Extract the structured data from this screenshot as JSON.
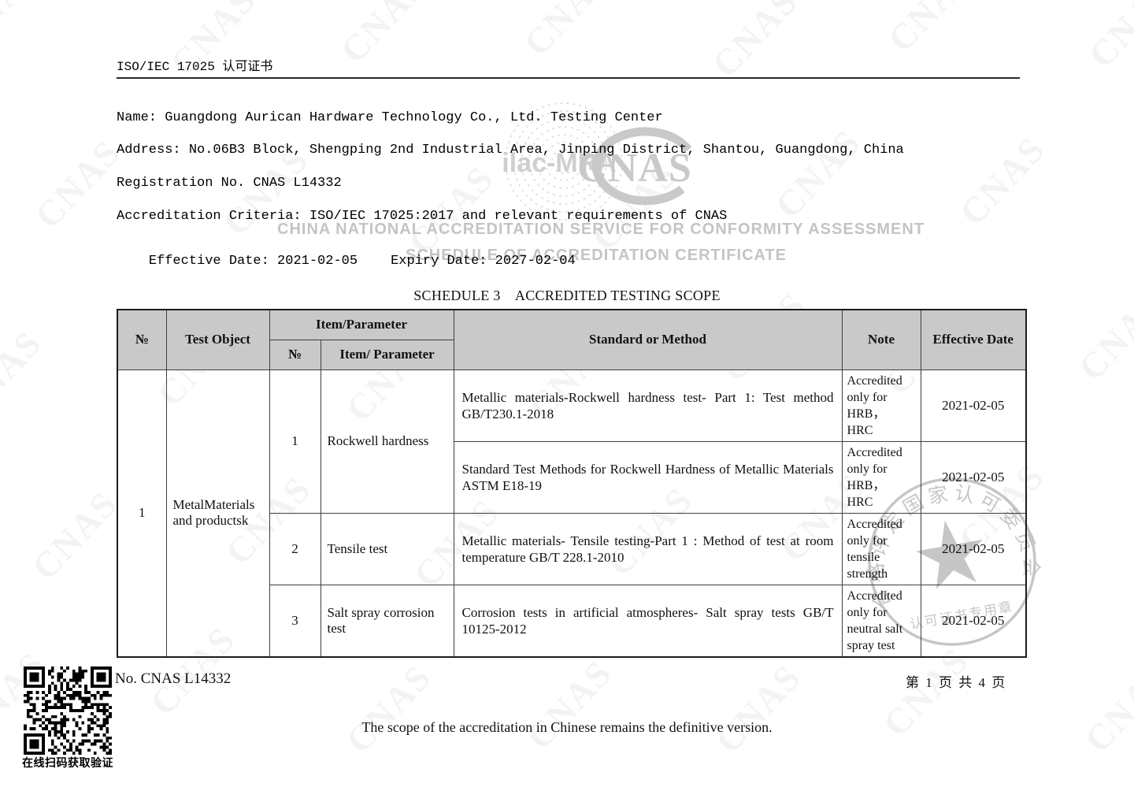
{
  "page_title": "ISO/IEC 17025 认可证书",
  "certificate": {
    "name": "Name: Guangdong Aurican Hardware Technology Co., Ltd. Testing Center",
    "address": "Address: No.06B3 Block, Shengping 2nd Industrial Area, Jinping District, Shantou, Guangdong, China",
    "registration": "Registration No. CNAS L14332",
    "criteria": "Accreditation Criteria: ISO/IEC 17025:2017 and relevant requirements of CNAS",
    "effective_date": "Effective Date: 2021-02-05",
    "expiry_date": "Expiry Date: 2027-02-04"
  },
  "watermarks": {
    "tile_text": "CNAS",
    "ilac_logo": "ilac-MRA",
    "cnas_logo": "CNAS",
    "service_line": "CHINA NATIONAL ACCREDITATION SERVICE FOR CONFORMITY ASSESSMENT",
    "schedule_line": "SCHEDULE OF ACCREDITATION CERTIFICATE",
    "seal_ring_text": "合格评定国家认可委员会",
    "seal_bottom_text": "认可证书专用章"
  },
  "schedule": {
    "title": "SCHEDULE 3    ACCREDITED TESTING SCOPE",
    "headers": {
      "no": "№",
      "test_object": "Test Object",
      "item_parameter_group": "Item/Parameter",
      "item_no": "№",
      "item_parameter": "Item/ Parameter",
      "standard_or_method": "Standard or Method",
      "note": "Note",
      "effective_date": "Effective Date"
    },
    "rows": {
      "object_no": "1",
      "object_name": "MetalMaterials and productsk",
      "items": [
        {
          "no": "1",
          "parameter": "Rockwell hardness"
        },
        {
          "no": "2",
          "parameter": "Tensile test"
        },
        {
          "no": "3",
          "parameter": "Salt spray corrosion test"
        }
      ],
      "entries": [
        {
          "standard": "Metallic materials-Rockwell hardness test- Part 1: Test method GB/T230.1-2018",
          "note": "Accredited\nonly for\nHRB，\nHRC",
          "date": "2021-02-05"
        },
        {
          "standard": "Standard Test Methods for Rockwell Hardness of Metallic Materials ASTM E18-19",
          "note": "Accredited\nonly for\nHRB，\nHRC",
          "date": "2021-02-05"
        },
        {
          "standard": "Metallic materials- Tensile testing-Part 1 : Method of test at room temperature GB/T 228.1-2010",
          "note": "Accredited\nonly for\ntensile\nstrength",
          "date": "2021-02-05"
        },
        {
          "standard": "Corrosion tests in artificial atmospheres- Salt spray tests GB/T 10125-2012",
          "note": "Accredited\nonly for\nneutral salt\nspray test",
          "date": "2021-02-05"
        }
      ]
    }
  },
  "footer": {
    "registration_no": "No. CNAS L14332",
    "qr_caption": "在线扫码获取验证",
    "page_info": "第 1 页 共 4 页",
    "note": "The scope of the accreditation in Chinese remains the definitive version."
  }
}
